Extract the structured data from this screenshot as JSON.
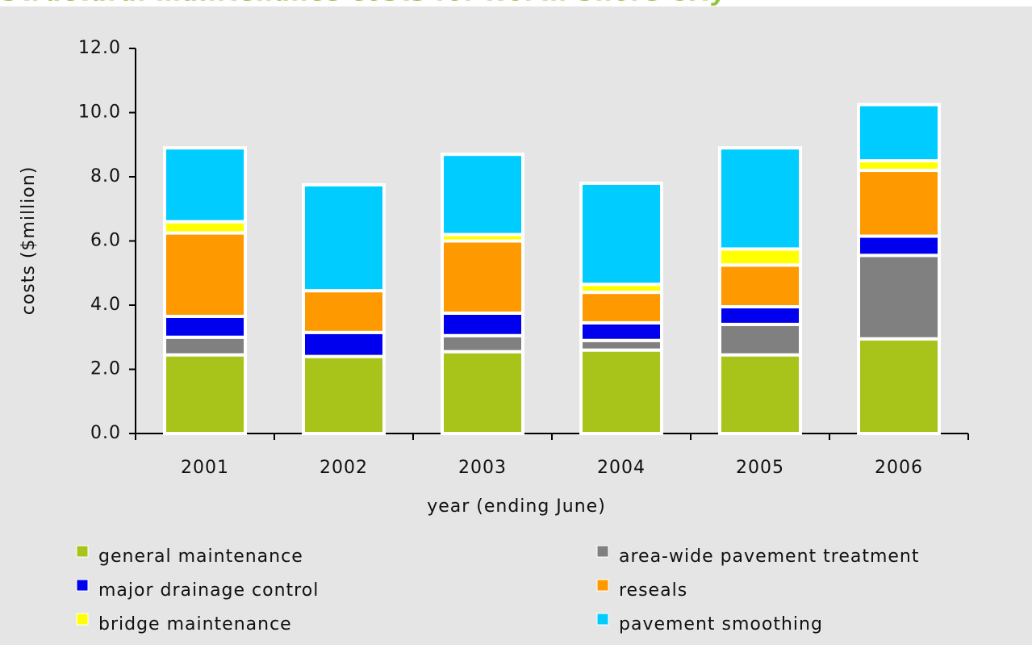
{
  "chart_data": {
    "type": "stacked_bar",
    "title": "Structural maintenance costs for North Shore City",
    "x_label": "year (ending June)",
    "y_label": "costs ($million)",
    "categories": [
      "2001",
      "2002",
      "2003",
      "2004",
      "2005",
      "2006"
    ],
    "series": [
      {
        "name": "general maintenance",
        "color": "#a8c31a",
        "values": [
          2.45,
          2.4,
          2.55,
          2.6,
          2.45,
          2.95
        ]
      },
      {
        "name": "area-wide pavement treatment",
        "color": "#808080",
        "values": [
          0.55,
          0,
          0.5,
          0.3,
          0.95,
          2.6
        ]
      },
      {
        "name": "major drainage control",
        "color": "#0000ee",
        "values": [
          0.65,
          0.75,
          0.7,
          0.55,
          0.55,
          0.6
        ]
      },
      {
        "name": "reseals",
        "color": "#ff9900",
        "values": [
          2.6,
          1.3,
          2.25,
          0.95,
          1.3,
          2.05
        ]
      },
      {
        "name": "bridge maintenance",
        "color": "#ffff00",
        "values": [
          0.35,
          0,
          0.2,
          0.25,
          0.5,
          0.3
        ]
      },
      {
        "name": "pavement smoothing",
        "color": "#00ccff",
        "values": [
          2.3,
          3.3,
          2.5,
          3.15,
          3.15,
          1.75
        ]
      }
    ],
    "ylim": [
      0,
      12
    ],
    "yticks": [
      {
        "value": 0,
        "label": "0.0"
      },
      {
        "value": 2,
        "label": "2.0"
      },
      {
        "value": 4,
        "label": "4.0"
      },
      {
        "value": 6,
        "label": "6.0"
      },
      {
        "value": 8,
        "label": "8.0"
      },
      {
        "value": 10,
        "label": "10.0"
      },
      {
        "value": 12,
        "label": "12.0"
      }
    ]
  }
}
